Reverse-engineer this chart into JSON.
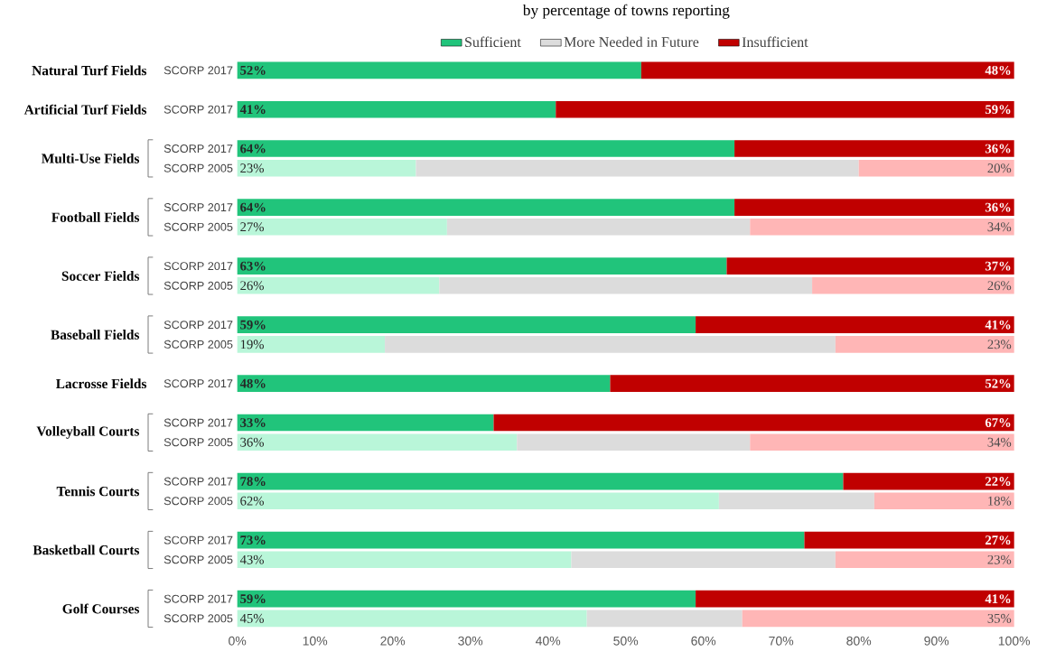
{
  "chart_data": {
    "type": "bar",
    "orientation": "horizontal",
    "stacked": true,
    "subtitle": "by percentage of towns reporting",
    "legend": "top",
    "categories": [
      "SCORP 2017",
      "SCORP 2017",
      "SCORP 2017",
      "SCORP 2005",
      "SCORP 2017",
      "SCORP 2005",
      "SCORP 2017",
      "SCORP 2005",
      "SCORP 2017",
      "SCORP 2005",
      "SCORP 2017",
      "SCORP 2017",
      "SCORP 2005",
      "SCORP 2017",
      "SCORP 2005",
      "SCORP 2017",
      "SCORP 2005",
      "SCORP 2017",
      "SCORP 2005"
    ],
    "annotations": [
      "Natural Turf Fields",
      "Artificial Turf Fields",
      "Multi-Use Fields",
      "Football Fields",
      "Soccer Fields",
      "Baseball Fields",
      "Lacrosse Fields",
      "Volleyball Courts",
      "Tennis Courts",
      "Basketball Courts",
      "Golf Courses"
    ],
    "xlim": [
      0,
      100
    ],
    "xticks": [
      {
        "value": 0,
        "label": "0%"
      },
      {
        "value": 10,
        "label": "10%"
      },
      {
        "value": 20,
        "label": "20%"
      },
      {
        "value": 30,
        "label": "30%"
      },
      {
        "value": 40,
        "label": "40%"
      },
      {
        "value": 50,
        "label": "50%"
      },
      {
        "value": 60,
        "label": "60%"
      },
      {
        "value": 70,
        "label": "70%"
      },
      {
        "value": 80,
        "label": "80%"
      },
      {
        "value": 90,
        "label": "90%"
      },
      {
        "value": 100,
        "label": "100%"
      }
    ],
    "series": [
      {
        "name": "Sufficient",
        "color": "#21c47b",
        "values": [
          52,
          41,
          64,
          23,
          64,
          27,
          63,
          26,
          59,
          19,
          48,
          33,
          36,
          78,
          62,
          73,
          43,
          59,
          45
        ],
        "colors": [
          "#21c47b",
          "#21c47b",
          "#21c47b",
          "#b9f6d9",
          "#21c47b",
          "#b9f6d9",
          "#21c47b",
          "#b9f6d9",
          "#21c47b",
          "#b9f6d9",
          "#21c47b",
          "#21c47b",
          "#b9f6d9",
          "#21c47b",
          "#b9f6d9",
          "#21c47b",
          "#b9f6d9",
          "#21c47b",
          "#b9f6d9"
        ],
        "value_labels": [
          "52%",
          "41%",
          "64%",
          "23%",
          "64%",
          "27%",
          "63%",
          "26%",
          "59%",
          "19%",
          "48%",
          "33%",
          "36%",
          "78%",
          "62%",
          "73%",
          "43%",
          "59%",
          "45%"
        ]
      },
      {
        "name": "More Needed in Future",
        "color": "#dcdcdc",
        "values": [
          null,
          null,
          null,
          57,
          null,
          39,
          null,
          48,
          null,
          58,
          null,
          null,
          30,
          null,
          20,
          null,
          34,
          null,
          20
        ]
      },
      {
        "name": "Insufficient",
        "color": "#c00000",
        "values": [
          48,
          59,
          36,
          20,
          36,
          34,
          37,
          26,
          41,
          23,
          52,
          67,
          34,
          22,
          18,
          27,
          23,
          41,
          35
        ],
        "colors": [
          "#c00000",
          "#c00000",
          "#c00000",
          "#ffb6b6",
          "#c00000",
          "#ffb6b6",
          "#c00000",
          "#ffb6b6",
          "#c00000",
          "#ffb6b6",
          "#c00000",
          "#c00000",
          "#ffb6b6",
          "#c00000",
          "#ffb6b6",
          "#c00000",
          "#ffb6b6",
          "#c00000",
          "#ffb6b6"
        ],
        "value_labels": [
          "48%",
          "59%",
          "36%",
          "20%",
          "36%",
          "34%",
          "37%",
          "26%",
          "41%",
          "23%",
          "52%",
          "67%",
          "34%",
          "22%",
          "18%",
          "27%",
          "23%",
          "41%",
          "35%"
        ]
      }
    ]
  }
}
